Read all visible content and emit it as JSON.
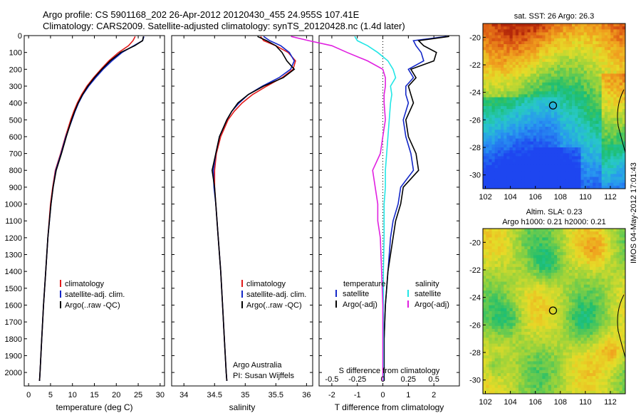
{
  "titles": {
    "line1": "Argo profile: CS 5901168_202 26-Apr-2012 20120430_455 24.955S 107.41E",
    "line2": "Climatology: CARS2009. Satellite-adjusted climatology: synTS_20120428.nc (1.4d later)"
  },
  "side_note": "IMOS 04-May-2012 17:01:43",
  "colors": {
    "red": "#e21b1b",
    "blue": "#1428c8",
    "black": "#000000",
    "cyan": "#22e6e6",
    "magenta": "#e020e0"
  },
  "chart_data": [
    {
      "type": "line",
      "id": "temperature",
      "xlabel": "temperature (deg C)",
      "ylabel": "",
      "xlim": [
        -1,
        31
      ],
      "ylim": [
        2080,
        0
      ],
      "xticks": [
        0,
        5,
        10,
        15,
        20,
        25,
        30
      ],
      "yticks": [
        0,
        100,
        200,
        300,
        400,
        500,
        600,
        700,
        800,
        900,
        1000,
        1100,
        1200,
        1300,
        1400,
        1500,
        1600,
        1700,
        1800,
        1900,
        2000
      ],
      "depth": [
        5,
        30,
        60,
        100,
        150,
        200,
        250,
        300,
        350,
        400,
        450,
        500,
        600,
        700,
        800,
        900,
        1000,
        1200,
        1400,
        1600,
        1800,
        2000,
        2050
      ],
      "series": [
        {
          "name": "climatology",
          "color": "red",
          "values": [
            24.3,
            23.8,
            22.8,
            20.5,
            18.3,
            16.5,
            14.8,
            13.3,
            12.1,
            11.1,
            10.3,
            9.6,
            8.4,
            7.3,
            6.1,
            5.5,
            5.0,
            4.4,
            3.9,
            3.4,
            3.0,
            2.6,
            2.5
          ]
        },
        {
          "name": "satellite-adj. clim.",
          "color": "blue",
          "values": [
            26.3,
            26.0,
            24.0,
            21.3,
            19.0,
            17.0,
            15.3,
            13.7,
            12.4,
            11.4,
            10.6,
            9.9,
            8.5,
            7.4,
            6.2,
            5.6,
            5.1,
            4.4,
            3.9,
            3.4,
            3.0,
            2.6,
            2.5
          ]
        },
        {
          "name": "Argo(..raw -QC)",
          "color": "black",
          "values": [
            26.2,
            26.0,
            24.2,
            21.0,
            18.6,
            16.7,
            15.0,
            13.5,
            12.3,
            11.3,
            10.5,
            9.8,
            8.6,
            7.5,
            6.3,
            5.6,
            5.1,
            4.4,
            3.9,
            3.4,
            3.0,
            2.6,
            2.5
          ]
        }
      ],
      "legend": [
        "climatology",
        "satellite-adj. clim.",
        "Argo(..raw -QC)"
      ]
    },
    {
      "type": "line",
      "id": "salinity",
      "xlabel": "salinity",
      "xlim": [
        33.8,
        36.1
      ],
      "ylim": [
        2080,
        0
      ],
      "xticks": [
        34,
        34.5,
        35,
        35.5,
        36
      ],
      "depth": [
        5,
        30,
        60,
        100,
        150,
        200,
        250,
        300,
        350,
        400,
        450,
        500,
        600,
        700,
        800,
        900,
        1000,
        1200,
        1400,
        1600,
        1800,
        2000,
        2050
      ],
      "series": [
        {
          "name": "climatology",
          "color": "red",
          "values": [
            35.25,
            35.3,
            35.5,
            35.7,
            35.82,
            35.78,
            35.6,
            35.35,
            35.12,
            34.95,
            34.82,
            34.72,
            34.6,
            34.53,
            34.5,
            34.5,
            34.52,
            34.56,
            34.6,
            34.63,
            34.66,
            34.69,
            34.7
          ]
        },
        {
          "name": "satellite-adj. clim.",
          "color": "blue",
          "values": [
            35.3,
            35.4,
            35.58,
            35.72,
            35.8,
            35.74,
            35.55,
            35.28,
            35.05,
            34.9,
            34.78,
            34.7,
            34.58,
            34.52,
            34.48,
            34.49,
            34.52,
            34.56,
            34.6,
            34.63,
            34.66,
            34.69,
            34.7
          ]
        },
        {
          "name": "Argo(..raw -QC)",
          "color": "black",
          "values": [
            35.2,
            35.35,
            35.5,
            35.6,
            35.68,
            35.8,
            35.62,
            35.3,
            35.05,
            34.88,
            34.78,
            34.7,
            34.58,
            34.52,
            34.46,
            34.5,
            34.52,
            34.56,
            34.6,
            34.63,
            34.66,
            34.69,
            34.7
          ]
        }
      ],
      "legend": [
        "climatology",
        "satellite-adj. clim.",
        "Argo(..raw -QC)"
      ],
      "annotation": [
        "Argo Australia",
        "PI: Susan Wijffels"
      ]
    },
    {
      "type": "line",
      "id": "differences",
      "xlabel": "T difference from climatology",
      "xlabel_top": "S difference from climatology",
      "xlim": [
        -2.5,
        3
      ],
      "ylim": [
        2080,
        0
      ],
      "xticks": [
        -2,
        -1,
        0,
        1,
        2
      ],
      "sticks_labels": [
        "-0.5",
        "-0.25",
        "0",
        "0.25",
        "0.5"
      ],
      "sticks_values": [
        -2,
        -1,
        0,
        1,
        2
      ],
      "depth": [
        5,
        30,
        60,
        100,
        150,
        200,
        250,
        300,
        350,
        400,
        500,
        600,
        700,
        800,
        900,
        1000,
        1100,
        1200,
        1400,
        1600,
        1800,
        2000,
        2050
      ],
      "series": [
        {
          "name": "temperature satellite",
          "color": "blue",
          "values": [
            2.5,
            1.2,
            1.3,
            1.5,
            1.6,
            1.0,
            1.2,
            0.9,
            0.9,
            1.0,
            0.8,
            0.9,
            1.1,
            1.2,
            0.7,
            0.6,
            0.4,
            0.3,
            0.2,
            0.1,
            0.05,
            0.05,
            0.05
          ]
        },
        {
          "name": "temperature Argo(-adj)",
          "color": "black",
          "values": [
            2.6,
            1.4,
            1.6,
            2.1,
            2.0,
            1.1,
            1.3,
            1.0,
            1.1,
            1.2,
            0.9,
            1.0,
            1.3,
            1.4,
            0.8,
            0.7,
            0.5,
            0.4,
            0.2,
            0.1,
            0.05,
            0.05,
            0.05
          ]
        },
        {
          "name": "salinity satellite",
          "color": "cyan",
          "values": [
            -1.1,
            -1.0,
            -0.6,
            -0.2,
            0.2,
            0.4,
            0.5,
            0.3,
            0.35,
            0.3,
            0.25,
            0.2,
            0.15,
            0.1,
            0.1,
            0.05,
            0.05,
            0.05,
            0.02,
            0.02,
            0.02,
            0.02,
            0.02
          ]
        },
        {
          "name": "salinity Argo(-adj)",
          "color": "magenta",
          "values": [
            -3.6,
            -2.9,
            -2.0,
            -1.4,
            -0.6,
            0.0,
            0.1,
            0.1,
            0.05,
            0.05,
            0.1,
            0.0,
            -0.1,
            -0.4,
            -0.3,
            -0.2,
            -0.2,
            -0.1,
            -0.05,
            0.0,
            0.0,
            0.0,
            0.0
          ]
        }
      ],
      "legend_headers": [
        "temperature",
        "salinity"
      ],
      "legend": [
        "satellite",
        "Argo(-adj)",
        "satellite",
        "Argo(-adj)"
      ]
    },
    {
      "type": "heatmap",
      "id": "sst",
      "title": "sat. SST: 26 Argo: 26.3",
      "xlim": [
        101.8,
        113.2
      ],
      "ylim": [
        -31,
        -19
      ],
      "xticks": [
        102,
        104,
        106,
        108,
        110,
        112
      ],
      "yticks": [
        -20,
        -22,
        -24,
        -26,
        -28,
        -30
      ],
      "marker": {
        "lon": 107.41,
        "lat": -24.955
      }
    },
    {
      "type": "heatmap",
      "id": "sla",
      "title": "Altim. SLA: 0.23",
      "subtitle": "Argo h1000: 0.21 h2000: 0.21",
      "xlim": [
        101.8,
        113.2
      ],
      "ylim": [
        -31,
        -19
      ],
      "xticks": [
        102,
        104,
        106,
        108,
        110,
        112
      ],
      "yticks": [
        -20,
        -22,
        -24,
        -26,
        -28,
        -30
      ],
      "marker": {
        "lon": 107.41,
        "lat": -24.955
      }
    }
  ]
}
